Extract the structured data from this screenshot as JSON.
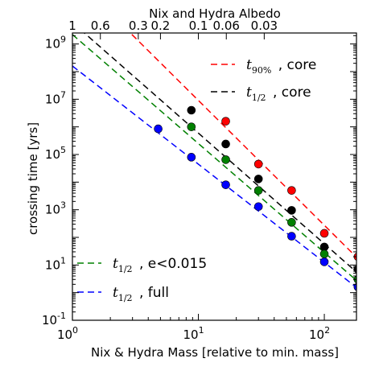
{
  "chart_data": {
    "type": "scatter",
    "xlabel": "Nix & Hydra Mass [relative to min. mass]",
    "ylabel": "crossing time [yrs]",
    "top_xlabel": "Nix and Hydra Albedo",
    "xscale": "log",
    "yscale": "log",
    "xlim": [
      1,
      180
    ],
    "ylim": [
      0.1,
      2500000000
    ],
    "x_tick_labels": [
      {
        "value": 1,
        "label": "10",
        "exp": "0"
      },
      {
        "value": 10,
        "label": "10",
        "exp": "1"
      },
      {
        "value": 100,
        "label": "10",
        "exp": "2"
      }
    ],
    "y_tick_labels": [
      {
        "value": 0.1,
        "label": "10",
        "exp": "-1"
      },
      {
        "value": 10,
        "label": "10",
        "exp": "1"
      },
      {
        "value": 1000,
        "label": "10",
        "exp": "3"
      },
      {
        "value": 100000,
        "label": "10",
        "exp": "5"
      },
      {
        "value": 10000000,
        "label": "10",
        "exp": "7"
      },
      {
        "value": 1000000000,
        "label": "10",
        "exp": "9"
      }
    ],
    "top_tick_labels": [
      {
        "albedo": 1,
        "label": "1"
      },
      {
        "albedo": 0.6,
        "label": "0.6"
      },
      {
        "albedo": 0.3,
        "label": "0.3"
      },
      {
        "albedo": 0.2,
        "label": "0.2"
      },
      {
        "albedo": 0.1,
        "label": "0.1"
      },
      {
        "albedo": 0.06,
        "label": "0.06"
      },
      {
        "albedo": 0.03,
        "label": "0.03"
      }
    ],
    "legend_position": "top-right and lower-left",
    "series": [
      {
        "name_math": "t",
        "name_sub": "90%",
        "name_text": ", core",
        "color": "#ff0000",
        "points": [
          [
            16.5,
            1600000.0
          ],
          [
            30,
            45000.0
          ],
          [
            55,
            5000.0
          ],
          [
            100,
            140.0
          ],
          [
            185,
            20.0
          ]
        ],
        "fit": [
          [
            1,
            300000000000.0
          ],
          [
            185,
            17.0
          ]
        ]
      },
      {
        "name_math": "t",
        "name_sub": "1/2",
        "name_text": ", core",
        "color": "#000000",
        "points": [
          [
            8.8,
            4000000.0
          ],
          [
            16.5,
            240000.0
          ],
          [
            30,
            13000.0
          ],
          [
            55,
            950.0
          ],
          [
            100,
            45.0
          ],
          [
            185,
            7.0
          ]
        ],
        "fit": [
          [
            1,
            6000000000.0
          ],
          [
            185,
            5.0
          ]
        ]
      },
      {
        "name_math": "t",
        "name_sub": "1/2",
        "name_text": ", e<0.015",
        "color": "#008000",
        "points": [
          [
            8.8,
            1000000.0
          ],
          [
            16.5,
            65000.0
          ],
          [
            30,
            5000.0
          ],
          [
            55,
            350.0
          ],
          [
            100,
            25.0
          ],
          [
            185,
            3.0
          ]
        ],
        "fit": [
          [
            1,
            2200000000.0
          ],
          [
            185,
            2.5
          ]
        ]
      },
      {
        "name_math": "t",
        "name_sub": "1/2",
        "name_text": ", full",
        "color": "#0000ff",
        "points": [
          [
            4.8,
            850000.0
          ],
          [
            8.8,
            80000.0
          ],
          [
            16.5,
            8000.0
          ],
          [
            30,
            1300.0
          ],
          [
            55,
            110.0
          ],
          [
            100,
            13.0
          ],
          [
            185,
            1.6
          ]
        ],
        "fit": [
          [
            1,
            160000000.0
          ],
          [
            185,
            1.4
          ]
        ]
      }
    ]
  }
}
